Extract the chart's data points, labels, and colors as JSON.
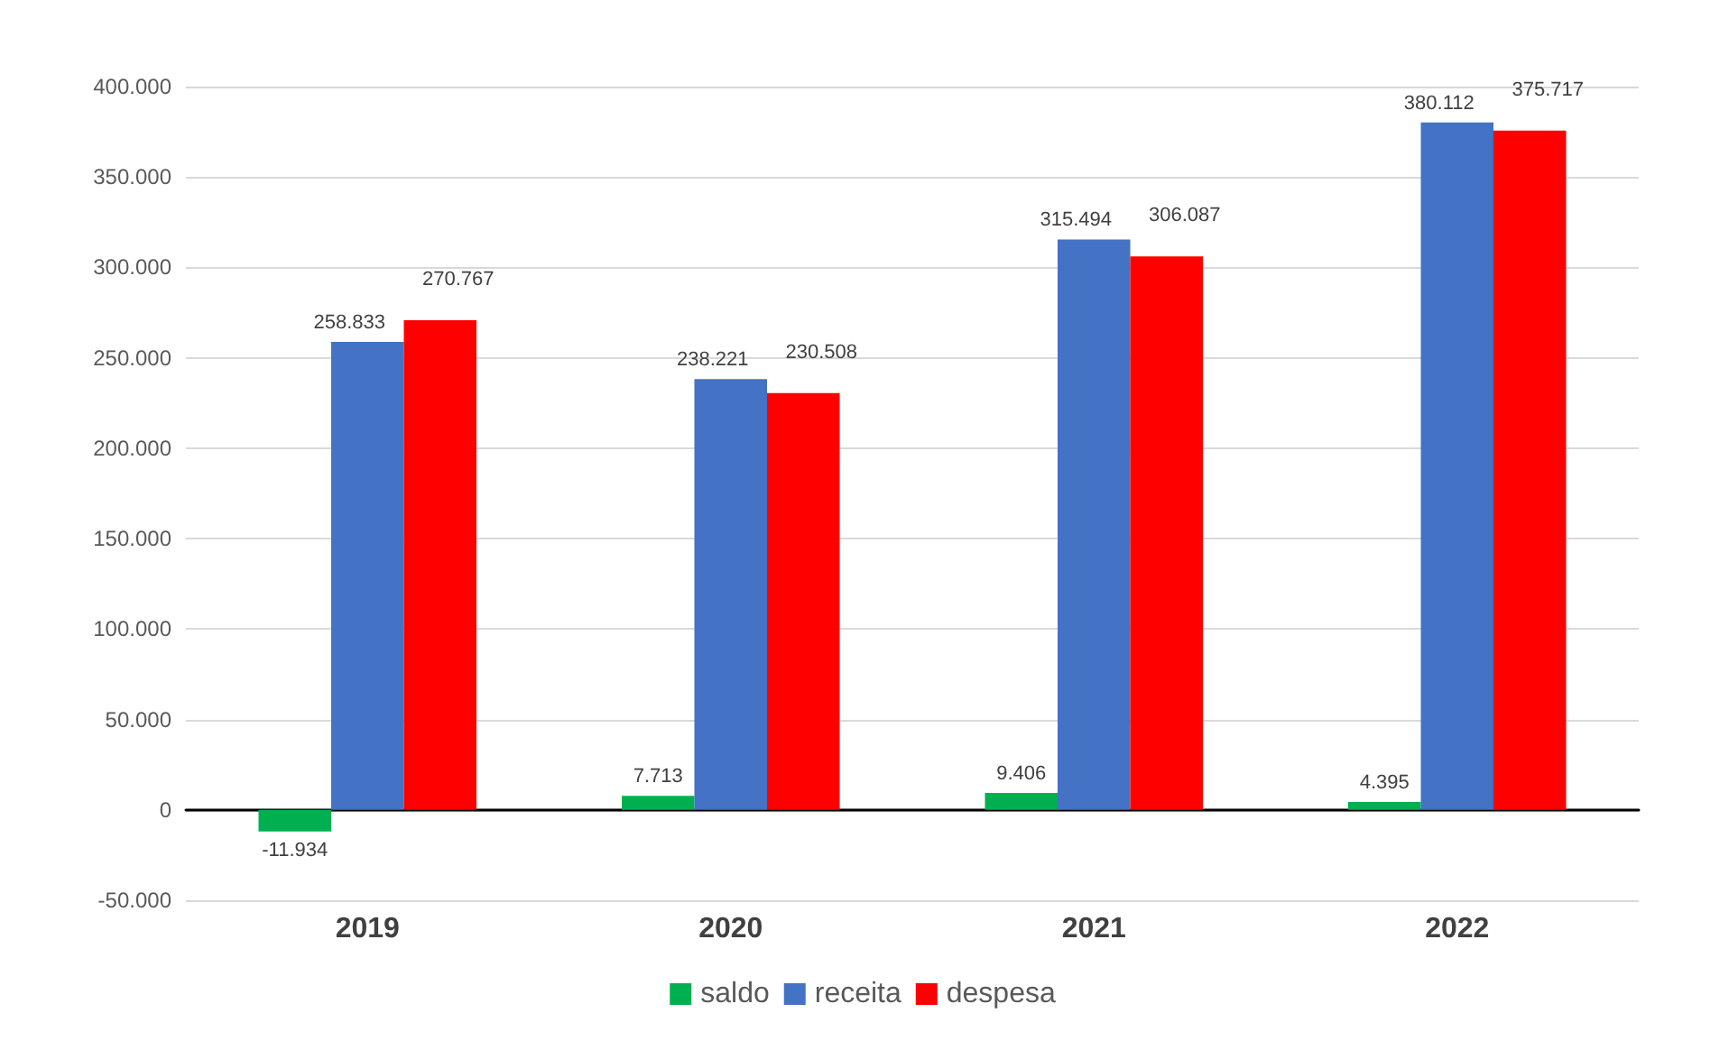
{
  "chart_data": {
    "type": "bar",
    "categories": [
      "2019",
      "2020",
      "2021",
      "2022"
    ],
    "series": [
      {
        "name": "saldo",
        "color": "#00b050",
        "values": [
          -11934,
          7713,
          9406,
          4395
        ],
        "value_labels": [
          "-11.934",
          "7.713",
          "9.406",
          "4.395"
        ]
      },
      {
        "name": "receita",
        "color": "#4472c4",
        "values": [
          258833,
          238221,
          315494,
          380112
        ],
        "value_labels": [
          "258.833",
          "238.221",
          "315.494",
          "380.112"
        ]
      },
      {
        "name": "despesa",
        "color": "#ff0000",
        "values": [
          270767,
          230508,
          306087,
          375717
        ],
        "value_labels": [
          "270.767",
          "230.508",
          "306.087",
          "375.717"
        ]
      }
    ],
    "ylim": [
      -50000,
      400000
    ],
    "yticks": [
      {
        "value": -50000,
        "label": "-50.000"
      },
      0,
      {
        "value": 50000,
        "label": "50.000"
      },
      {
        "value": 100000,
        "label": "100.000"
      },
      {
        "value": 150000,
        "label": "150.000"
      },
      {
        "value": 200000,
        "label": "200.000"
      },
      {
        "value": 250000,
        "label": "250.000"
      },
      {
        "value": 300000,
        "label": "300.000"
      },
      {
        "value": 350000,
        "label": "350.000"
      },
      {
        "value": 400000,
        "label": "400.000"
      }
    ],
    "grid": "y",
    "legend": "bottom"
  }
}
